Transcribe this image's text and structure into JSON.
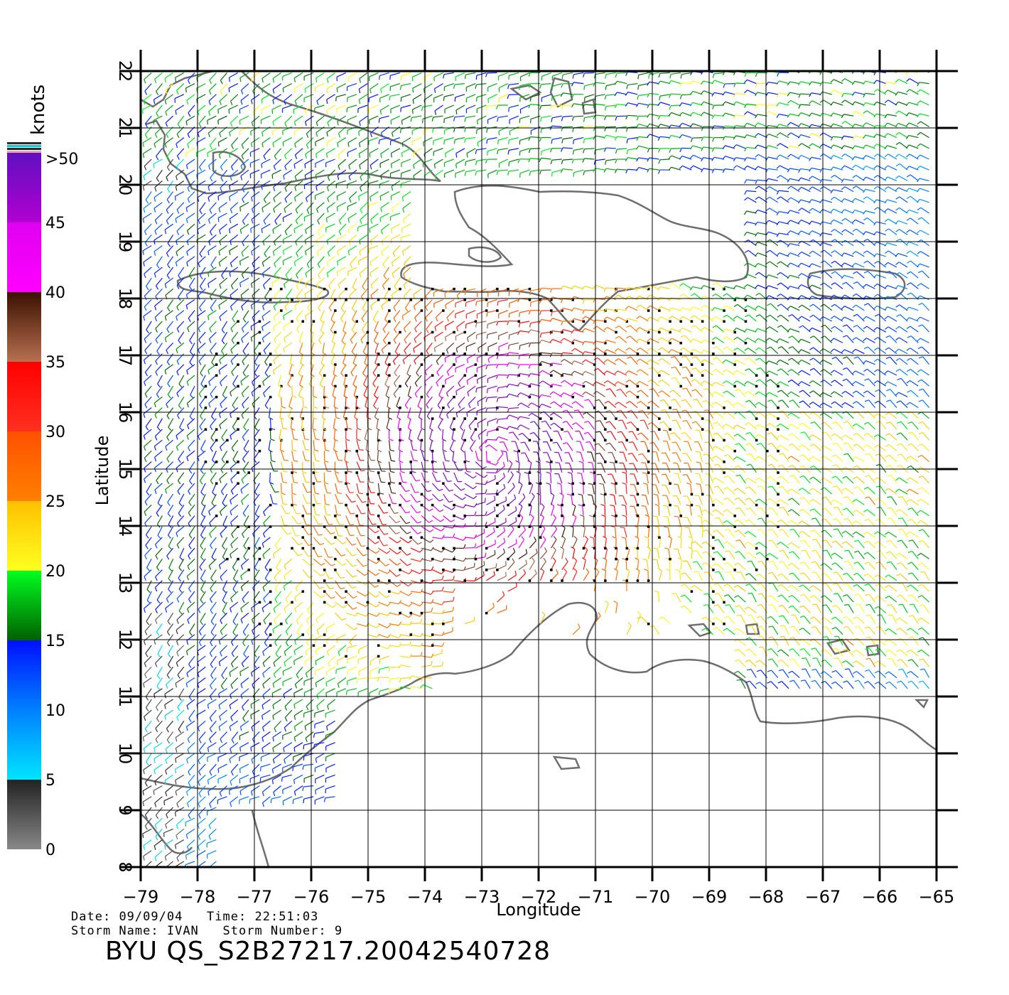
{
  "plot": {
    "xlabel": "Longitude",
    "ylabel": "Latitude",
    "x_ticks": [
      "-79",
      "-78",
      "-77",
      "-76",
      "-75",
      "-74",
      "-73",
      "-72",
      "-71",
      "-70",
      "-69",
      "-68",
      "-67",
      "-66",
      "-65"
    ],
    "y_ticks": [
      "8",
      "9",
      "10",
      "11",
      "12",
      "13",
      "14",
      "15",
      "16",
      "17",
      "18",
      "19",
      "20",
      "21",
      "22"
    ],
    "xlim": [
      -79,
      -65
    ],
    "ylim": [
      8,
      22
    ]
  },
  "colorbar": {
    "title": "knots",
    "labels": [
      ">50",
      "45",
      "40",
      "35",
      "30",
      "25",
      "20",
      "15",
      "10",
      "5",
      "0"
    ],
    "bands": [
      {
        "from": 0,
        "to": 5,
        "colors": [
          "#888888",
          "#222222"
        ]
      },
      {
        "from": 5,
        "to": 10,
        "colors": [
          "#00e5ff",
          "#0080ff"
        ]
      },
      {
        "from": 10,
        "to": 15,
        "colors": [
          "#0080ff",
          "#0010ff"
        ]
      },
      {
        "from": 15,
        "to": 20,
        "colors": [
          "#006000",
          "#00ff20"
        ]
      },
      {
        "from": 20,
        "to": 25,
        "colors": [
          "#ffff20",
          "#ffc000"
        ]
      },
      {
        "from": 25,
        "to": 30,
        "colors": [
          "#ff8000",
          "#ff5000"
        ]
      },
      {
        "from": 30,
        "to": 35,
        "colors": [
          "#ff3020",
          "#ff0000"
        ]
      },
      {
        "from": 35,
        "to": 40,
        "colors": [
          "#b87050",
          "#3a1000"
        ]
      },
      {
        "from": 40,
        "to": 45,
        "colors": [
          "#ff00ff",
          "#e000f0"
        ]
      },
      {
        "from": 45,
        "to": 50,
        "colors": [
          "#b000d0",
          "#6010c0"
        ]
      }
    ]
  },
  "storm_center": {
    "lon": -72.8,
    "lat": 15.3
  },
  "footer": {
    "date_label": "Date:",
    "date": "09/09/04",
    "time_label": "Time:",
    "time": "22:51:03",
    "storm_name_label": "Storm Name:",
    "storm_name": "IVAN",
    "storm_number_label": "Storm Number:",
    "storm_number": "9",
    "product": "BYU  QS_S2B27217.20042540728"
  }
}
